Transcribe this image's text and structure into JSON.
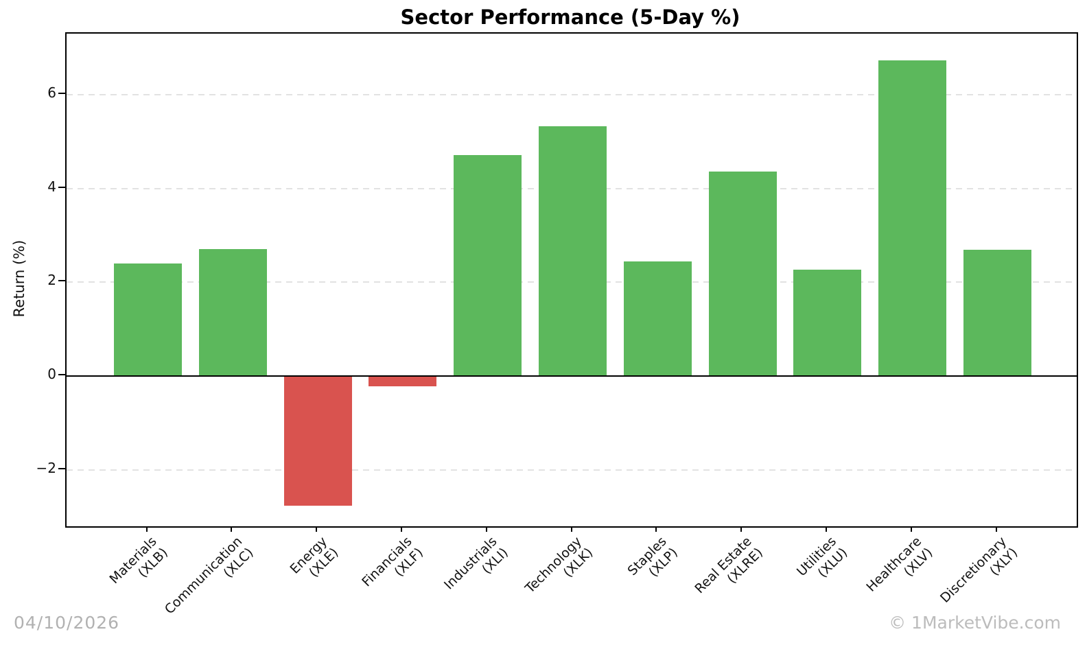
{
  "chart_data": {
    "type": "bar",
    "title": "Sector Performance (5-Day %)",
    "xlabel": "",
    "ylabel": "Return (%)",
    "categories": [
      {
        "sector": "Materials",
        "ticker": "(XLB)"
      },
      {
        "sector": "Communication",
        "ticker": "(XLC)"
      },
      {
        "sector": "Energy",
        "ticker": "(XLE)"
      },
      {
        "sector": "Financials",
        "ticker": "(XLF)"
      },
      {
        "sector": "Industrials",
        "ticker": "(XLI)"
      },
      {
        "sector": "Technology",
        "ticker": "(XLK)"
      },
      {
        "sector": "Staples",
        "ticker": "(XLP)"
      },
      {
        "sector": "Real Estate",
        "ticker": "(XLRE)"
      },
      {
        "sector": "Utilities",
        "ticker": "(XLU)"
      },
      {
        "sector": "Healthcare",
        "ticker": "(XLV)"
      },
      {
        "sector": "Discretionary",
        "ticker": "(XLY)"
      }
    ],
    "values": [
      2.4,
      2.71,
      -2.76,
      -0.21,
      4.71,
      5.32,
      2.44,
      4.36,
      2.27,
      6.73,
      2.69
    ],
    "positive_color": "#5cb85c",
    "negative_color": "#d9534f",
    "ylim": [
      -3.2,
      7.3
    ],
    "yticks": [
      6,
      4,
      2,
      0,
      -2
    ],
    "grid": {
      "axis": "y",
      "style": "dashed",
      "color": "#e2e2e2"
    },
    "zero_line": true,
    "legend": null
  },
  "footer": {
    "date": "04/10/2026",
    "watermark": "© 1MarketVibe.com"
  }
}
